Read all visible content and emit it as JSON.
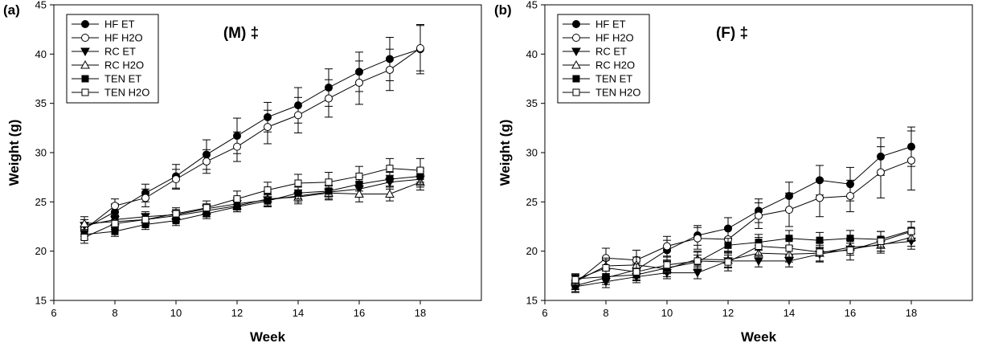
{
  "chart_data": [
    {
      "type": "line",
      "panel_label": "(a)",
      "annotation": "(M) ‡",
      "xlabel": "Week",
      "ylabel": "Weight (g)",
      "xlim": [
        6,
        20
      ],
      "ylim": [
        15,
        45
      ],
      "xticks": [
        6,
        8,
        10,
        12,
        14,
        16,
        18
      ],
      "yticks": [
        15,
        20,
        25,
        30,
        35,
        40,
        45
      ],
      "legend_position": "top-left",
      "x": [
        7,
        8,
        9,
        10,
        11,
        12,
        13,
        14,
        15,
        16,
        17,
        18
      ],
      "series": [
        {
          "name": "HF ET",
          "marker": "circle",
          "filled": true,
          "values": [
            22.3,
            24.0,
            25.9,
            27.6,
            29.8,
            31.7,
            33.6,
            34.8,
            36.6,
            38.2,
            39.5,
            40.5
          ],
          "errors": [
            0.6,
            0.8,
            0.9,
            1.2,
            1.5,
            1.8,
            1.5,
            1.8,
            1.9,
            2.0,
            2.2,
            2.5
          ]
        },
        {
          "name": "HF H2O",
          "marker": "circle",
          "filled": false,
          "values": [
            22.2,
            24.6,
            25.4,
            27.3,
            29.1,
            30.6,
            32.6,
            33.8,
            35.5,
            37.1,
            38.4,
            40.6
          ],
          "errors": [
            0.7,
            0.7,
            0.9,
            1.0,
            1.2,
            1.5,
            1.7,
            1.8,
            1.9,
            2.2,
            2.1,
            2.3
          ]
        },
        {
          "name": "RC ET",
          "marker": "triangle-down",
          "filled": true,
          "values": [
            22.6,
            23.2,
            23.5,
            23.7,
            24.3,
            24.8,
            25.2,
            25.6,
            26.0,
            26.3,
            27.0,
            27.3
          ],
          "errors": [
            0.6,
            0.5,
            0.5,
            0.5,
            0.5,
            0.6,
            0.6,
            0.6,
            0.7,
            0.7,
            0.7,
            0.8
          ]
        },
        {
          "name": "RC H2O",
          "marker": "triangle-up",
          "filled": false,
          "values": [
            22.8,
            23.0,
            23.2,
            23.6,
            24.1,
            24.6,
            25.3,
            25.5,
            25.9,
            25.8,
            25.8,
            27.0
          ],
          "errors": [
            0.7,
            0.6,
            0.6,
            0.6,
            0.6,
            0.6,
            0.7,
            0.7,
            0.7,
            0.8,
            0.7,
            0.8
          ]
        },
        {
          "name": "TEN ET",
          "marker": "square",
          "filled": true,
          "values": [
            21.7,
            22.0,
            22.7,
            23.1,
            23.8,
            24.5,
            25.1,
            25.9,
            26.1,
            26.8,
            27.3,
            27.6
          ],
          "errors": [
            0.5,
            0.5,
            0.5,
            0.5,
            0.5,
            0.5,
            0.6,
            0.6,
            0.6,
            0.7,
            0.7,
            0.8
          ]
        },
        {
          "name": "TEN H2O",
          "marker": "square",
          "filled": false,
          "values": [
            21.4,
            22.8,
            23.2,
            23.8,
            24.4,
            25.3,
            26.2,
            26.9,
            27.0,
            27.6,
            28.4,
            28.2
          ],
          "errors": [
            0.6,
            0.6,
            0.6,
            0.6,
            0.7,
            0.8,
            0.8,
            0.9,
            1.0,
            1.0,
            1.0,
            1.2
          ]
        }
      ]
    },
    {
      "type": "line",
      "panel_label": "(b)",
      "annotation": "(F) ‡",
      "xlabel": "Week",
      "ylabel": "Weight (g)",
      "xlim": [
        6,
        20
      ],
      "ylim": [
        15,
        45
      ],
      "xticks": [
        6,
        8,
        10,
        12,
        14,
        16,
        18
      ],
      "yticks": [
        15,
        20,
        25,
        30,
        35,
        40,
        45
      ],
      "legend_position": "top-left",
      "x": [
        7,
        8,
        9,
        10,
        11,
        12,
        13,
        14,
        15,
        16,
        17,
        18
      ],
      "series": [
        {
          "name": "HF ET",
          "marker": "circle",
          "filled": true,
          "values": [
            16.5,
            17.3,
            18.1,
            20.1,
            21.6,
            22.3,
            24.1,
            25.6,
            27.2,
            26.8,
            29.6,
            30.6
          ],
          "errors": [
            0.6,
            0.7,
            0.8,
            1.0,
            1.0,
            1.1,
            1.2,
            1.4,
            1.5,
            1.7,
            1.9,
            2.0
          ]
        },
        {
          "name": "HF H2O",
          "marker": "circle",
          "filled": false,
          "values": [
            16.8,
            19.3,
            19.1,
            20.5,
            21.3,
            21.2,
            23.6,
            24.2,
            25.4,
            25.6,
            28.0,
            29.2
          ],
          "errors": [
            0.7,
            1.0,
            1.0,
            1.0,
            1.1,
            1.2,
            1.3,
            1.7,
            1.9,
            1.6,
            2.6,
            3.0
          ]
        },
        {
          "name": "RC ET",
          "marker": "triangle-down",
          "filled": true,
          "values": [
            16.4,
            16.9,
            17.4,
            17.8,
            17.8,
            19.0,
            19.0,
            19.0,
            19.7,
            20.2,
            20.7,
            21.0
          ],
          "errors": [
            0.6,
            0.6,
            0.6,
            0.6,
            0.6,
            0.6,
            0.6,
            0.6,
            0.7,
            0.6,
            0.7,
            0.8
          ]
        },
        {
          "name": "RC H2O",
          "marker": "triangle-up",
          "filled": false,
          "values": [
            16.9,
            18.5,
            18.6,
            18.2,
            19.2,
            19.1,
            19.8,
            19.7,
            19.8,
            20.4,
            20.6,
            21.4
          ],
          "errors": [
            0.7,
            0.8,
            0.8,
            0.8,
            0.8,
            0.8,
            0.8,
            0.8,
            0.8,
            0.8,
            0.8,
            0.9
          ]
        },
        {
          "name": "TEN ET",
          "marker": "square",
          "filled": true,
          "values": [
            17.2,
            17.4,
            17.6,
            18.3,
            18.9,
            20.6,
            20.9,
            21.3,
            21.1,
            21.3,
            21.2,
            22.1
          ],
          "errors": [
            0.5,
            0.6,
            0.6,
            0.6,
            0.7,
            0.7,
            0.8,
            0.8,
            0.8,
            0.8,
            0.8,
            0.9
          ]
        },
        {
          "name": "TEN H2O",
          "marker": "square",
          "filled": false,
          "values": [
            17.1,
            18.3,
            17.9,
            18.6,
            19.0,
            18.9,
            20.5,
            20.3,
            19.9,
            20.1,
            21.0,
            22.0
          ],
          "errors": [
            0.6,
            0.8,
            0.8,
            0.8,
            0.9,
            0.9,
            0.9,
            0.9,
            1.0,
            1.0,
            1.0,
            1.0
          ]
        }
      ]
    }
  ]
}
